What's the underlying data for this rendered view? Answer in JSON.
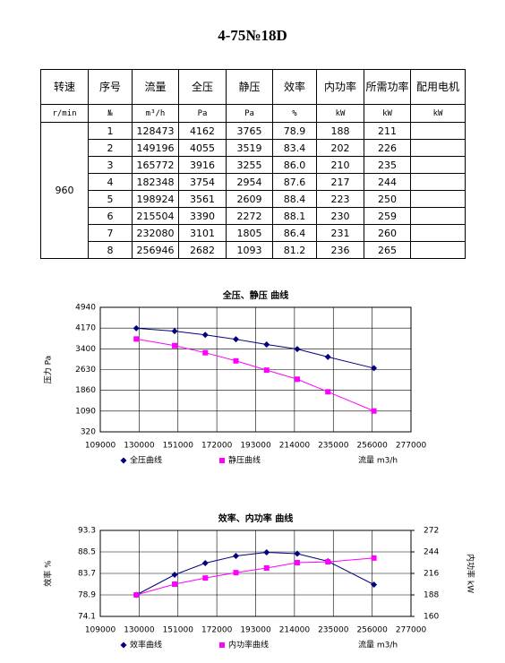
{
  "title": "4-75№18D",
  "table": {
    "header": [
      "转速",
      "序号",
      "流量",
      "全压",
      "静压",
      "效率",
      "内功率",
      "所需功率",
      "配用电机"
    ],
    "units": [
      "r/min",
      "№",
      "m³/h",
      "Pa",
      "Pa",
      "%",
      "kW",
      "kW",
      "kW"
    ],
    "speed": "960",
    "rows": [
      [
        "1",
        "128473",
        "4162",
        "3765",
        "78.9",
        "188",
        "211"
      ],
      [
        "2",
        "149196",
        "4055",
        "3519",
        "83.4",
        "202",
        "226"
      ],
      [
        "3",
        "165772",
        "3916",
        "3255",
        "86.0",
        "210",
        "235"
      ],
      [
        "4",
        "182348",
        "3754",
        "2954",
        "87.6",
        "217",
        "244"
      ],
      [
        "5",
        "198924",
        "3561",
        "2609",
        "88.4",
        "223",
        "250"
      ],
      [
        "6",
        "215504",
        "3390",
        "2272",
        "88.1",
        "230",
        "259"
      ],
      [
        "7",
        "232080",
        "3101",
        "1805",
        "86.4",
        "231",
        "260"
      ],
      [
        "8",
        "256946",
        "2682",
        "1093",
        "81.2",
        "236",
        "265"
      ]
    ]
  },
  "chart_data": [
    {
      "type": "line",
      "title": "全压、静压 曲线",
      "y_label": "压力 Pa",
      "x_label": "流量 m3/h",
      "x": [
        128473,
        149196,
        165772,
        182348,
        198924,
        215504,
        232080,
        256946
      ],
      "xlim": [
        109000,
        277000
      ],
      "xticks": [
        109000,
        130000,
        151000,
        172000,
        193000,
        214000,
        235000,
        256000,
        277000
      ],
      "ylim": [
        320,
        4940
      ],
      "yticks": [
        320,
        1090,
        1860,
        2630,
        3400,
        4170,
        4940
      ],
      "grid": true,
      "series": [
        {
          "name": "全压曲线",
          "color": "#000080",
          "marker": "diamond",
          "values": [
            4162,
            4055,
            3916,
            3754,
            3561,
            3390,
            3101,
            2682
          ]
        },
        {
          "name": "静压曲线",
          "color": "#ff00ff",
          "marker": "square",
          "values": [
            3765,
            3519,
            3255,
            2954,
            2609,
            2272,
            1805,
            1093
          ]
        }
      ]
    },
    {
      "type": "line",
      "title": "效率、内功率 曲线",
      "y_label": "效率 %",
      "y2_label": "内功率 kW",
      "x_label": "流量 m3/h",
      "x": [
        128473,
        149196,
        165772,
        182348,
        198924,
        215504,
        232080,
        256946
      ],
      "xlim": [
        109000,
        277000
      ],
      "xticks": [
        109000,
        130000,
        151000,
        172000,
        193000,
        214000,
        235000,
        256000,
        277000
      ],
      "ylim": [
        74.1,
        93.3
      ],
      "yticks": [
        74.1,
        78.9,
        83.7,
        88.5,
        93.3
      ],
      "y2lim": [
        160,
        272
      ],
      "y2ticks": [
        160,
        188,
        216,
        244,
        272
      ],
      "grid": true,
      "series": [
        {
          "name": "效率曲线",
          "color": "#000080",
          "marker": "diamond",
          "values": [
            78.9,
            83.4,
            86.0,
            87.6,
            88.4,
            88.1,
            86.4,
            81.2
          ]
        },
        {
          "name": "内功率曲线",
          "color": "#ff00ff",
          "marker": "square",
          "axis": "y2",
          "values": [
            188,
            202,
            210,
            217,
            223,
            230,
            231,
            236
          ]
        }
      ]
    }
  ]
}
